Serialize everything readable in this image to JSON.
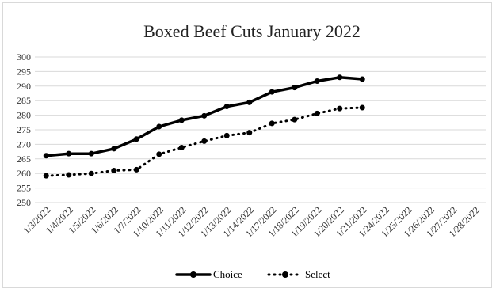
{
  "chart_data": {
    "type": "line",
    "title": "Boxed Beef Cuts January 2022",
    "xlabel": "",
    "ylabel": "",
    "ylim": [
      250,
      300
    ],
    "yticks": [
      250,
      255,
      260,
      265,
      270,
      275,
      280,
      285,
      290,
      295,
      300
    ],
    "grid": true,
    "legend_position": "bottom",
    "categories": [
      "1/3/2022",
      "1/4/2022",
      "1/5/2022",
      "1/6/2022",
      "1/7/2022",
      "1/10/2022",
      "1/11/2022",
      "1/12/2022",
      "1/13/2022",
      "1/14/2022",
      "1/17/2022",
      "1/18/2022",
      "1/19/2022",
      "1/20/2022",
      "1/21/2022",
      "1/24/2022",
      "1/25/2022",
      "1/26/2022",
      "1/27/2022",
      "1/28/2022"
    ],
    "series": [
      {
        "name": "Choice",
        "color": "#000000",
        "style": "solid",
        "values": [
          266.1,
          266.8,
          266.8,
          268.5,
          271.8,
          276.1,
          278.3,
          279.8,
          283.0,
          284.4,
          288.0,
          289.5,
          291.7,
          293.0,
          292.4,
          null,
          null,
          null,
          null,
          null
        ]
      },
      {
        "name": "Select",
        "color": "#000000",
        "style": "dotted",
        "values": [
          259.2,
          259.5,
          260.0,
          261.0,
          261.3,
          266.6,
          268.9,
          271.1,
          273.0,
          274.0,
          277.2,
          278.5,
          280.6,
          282.3,
          282.6,
          null,
          null,
          null,
          null,
          null
        ]
      }
    ]
  }
}
